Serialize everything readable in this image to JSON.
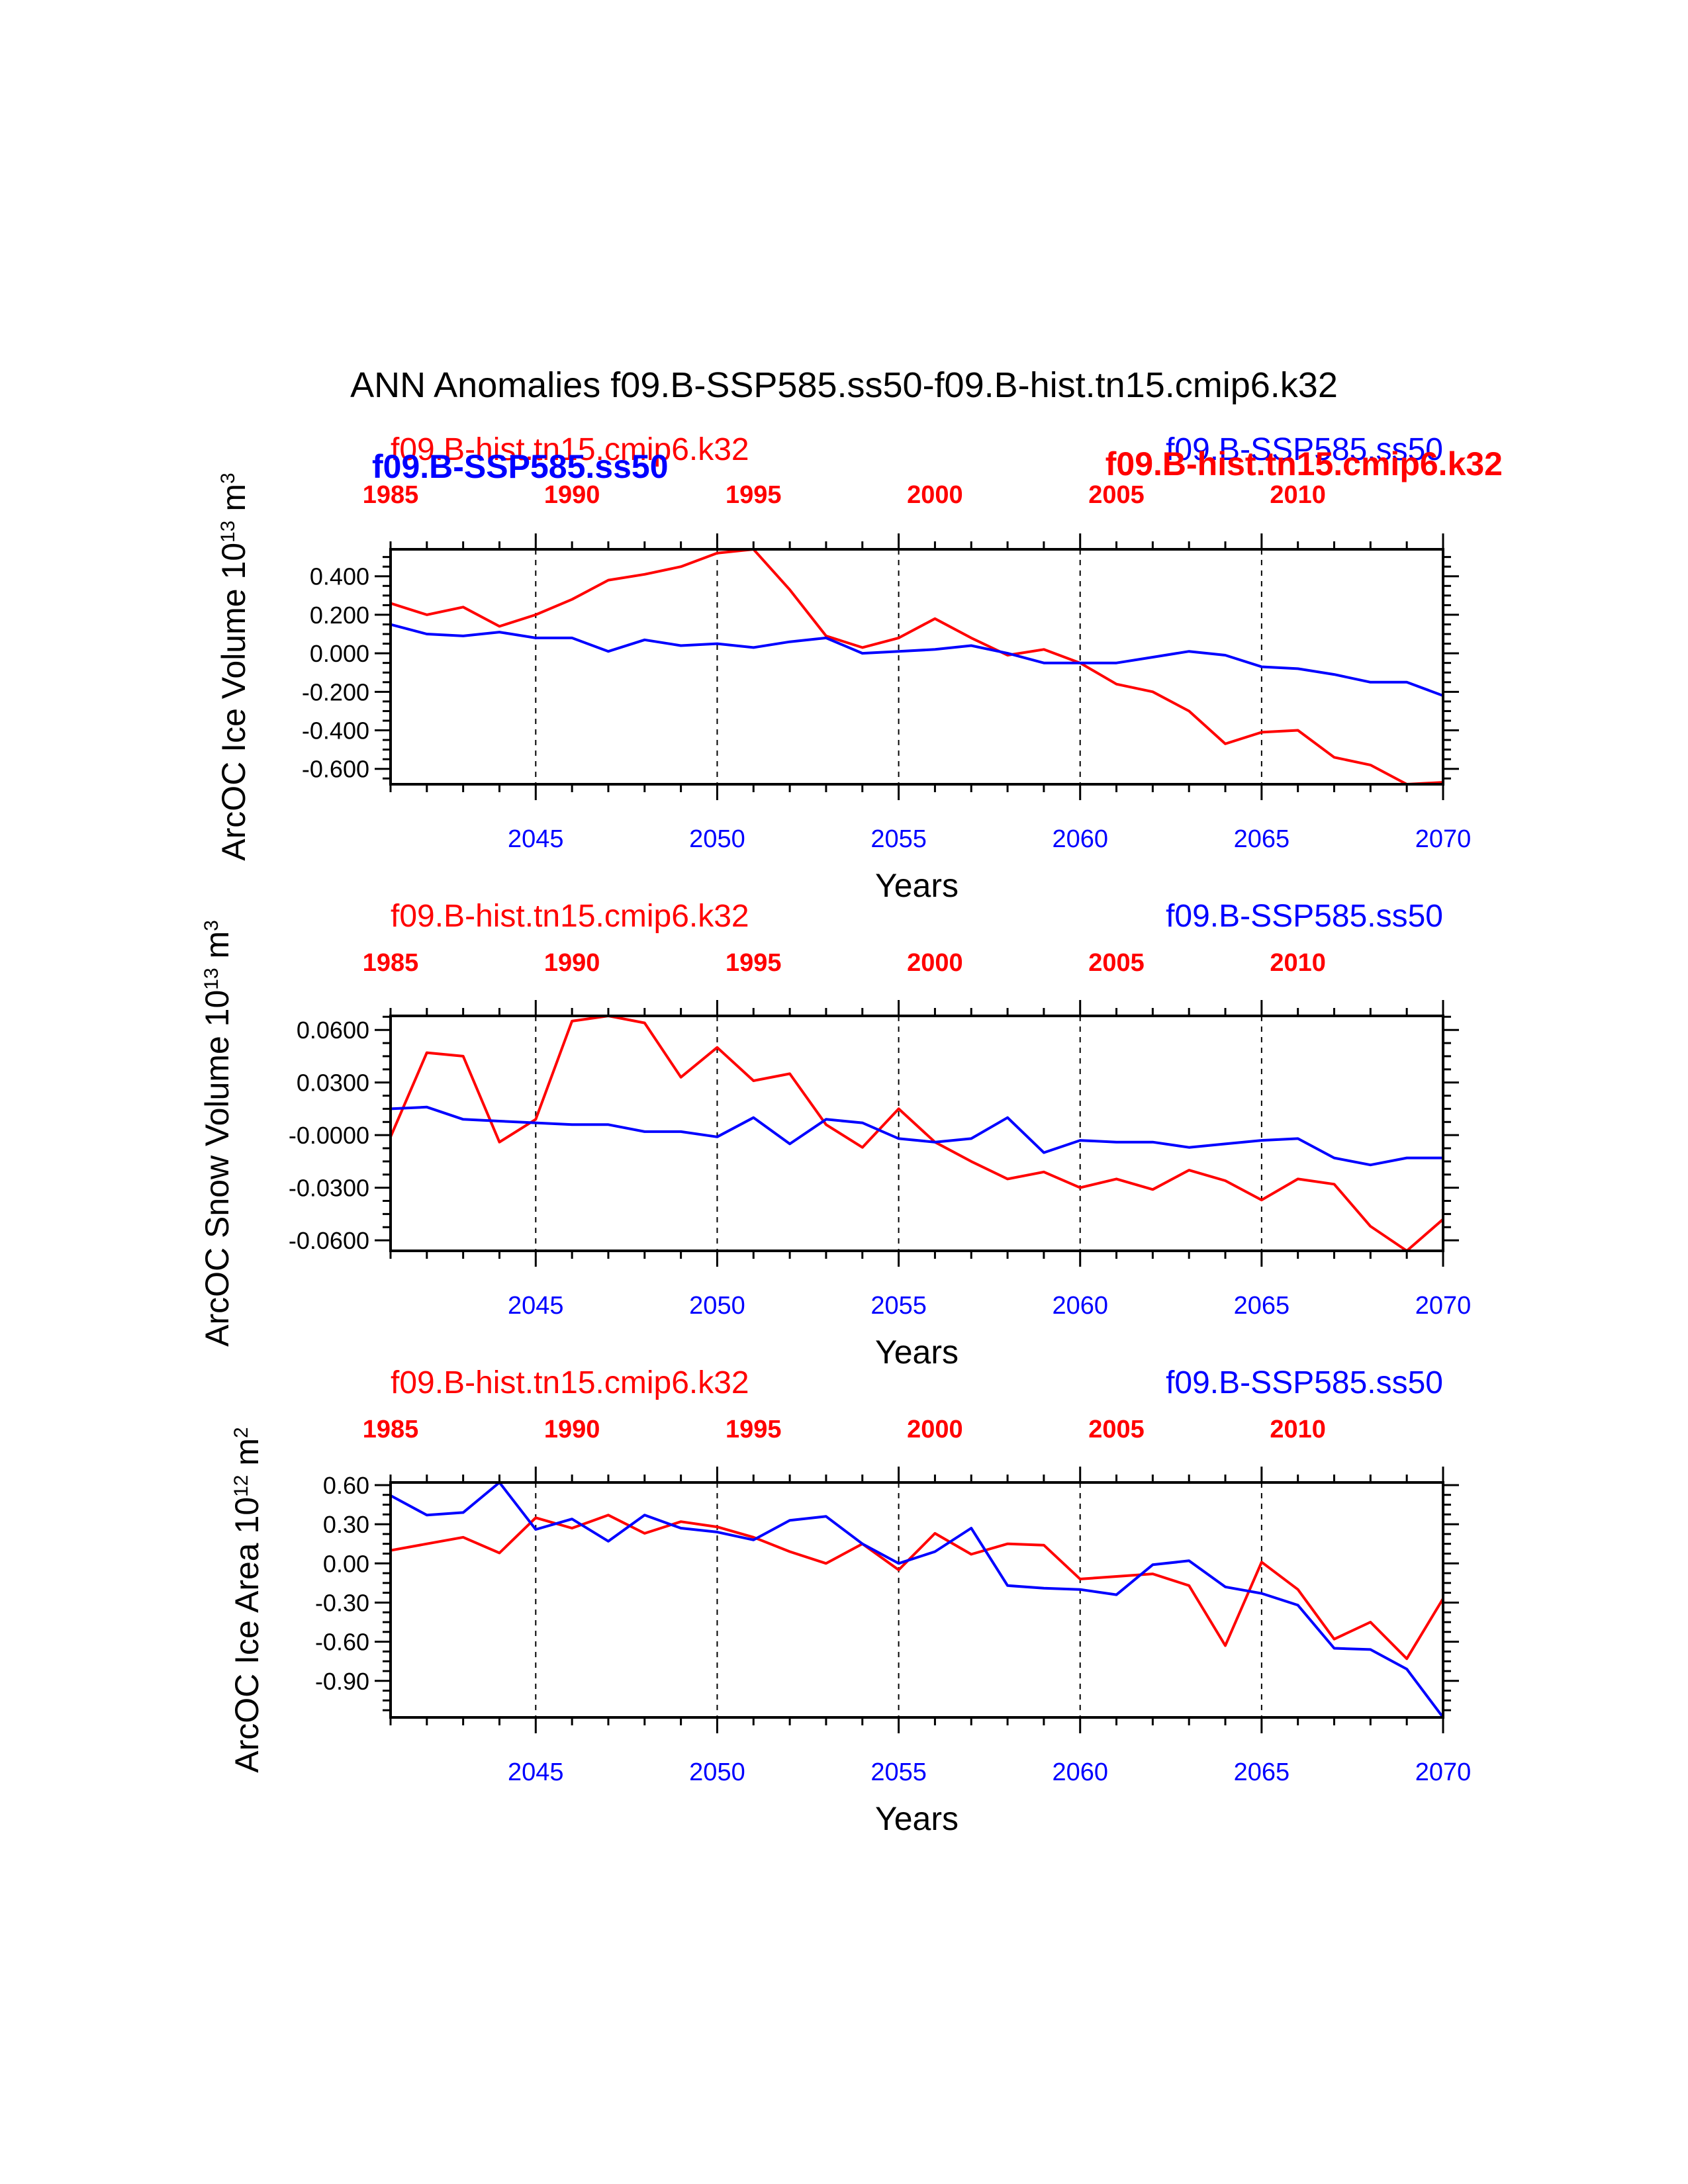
{
  "figure": {
    "title": "ANN Anomalies f09.B-SSP585.ss50-f09.B-hist.tn15.cmip6.k32",
    "colors": {
      "hist": "#ff0000",
      "ssp": "#0000ff",
      "frame": "#000000"
    }
  },
  "chart_data": [
    {
      "type": "line",
      "ylabel": "ArcOC Ice Volume 10",
      "ylabel_exp": "13",
      "ylabel_unit": " m",
      "ylabel_unit_exp": "3",
      "xlabel": "Years",
      "top_left_label": "f09.B-hist.tn15.cmip6.k32",
      "top_right_label": "f09.B-SSP585.ss50",
      "overlap_left_label": "f09.B-SSP585.ss50",
      "overlap_right_label": "f09.B-hist.tn15.cmip6.k32",
      "x_bottom_ticks": [
        "2045",
        "2050",
        "2055",
        "2060",
        "2065",
        "2070"
      ],
      "x_top_ticks": [
        "1985",
        "1990",
        "1995",
        "2000",
        "2005",
        "2010"
      ],
      "y_ticks": [
        "0.400",
        "0.200",
        "0.000",
        "-0.200",
        "-0.400",
        "-0.600"
      ],
      "y_tick_values": [
        0.4,
        0.2,
        0.0,
        -0.2,
        -0.4,
        -0.6
      ],
      "ylim": [
        -0.68,
        0.54
      ],
      "xlim_bottom": [
        2041,
        2070
      ],
      "top_axis_offset": 56,
      "grid": "dashed vertical lines at 2045, 2050, 2055, 2060, 2065",
      "series": [
        {
          "name": "f09.B-hist.tn15.cmip6.k32",
          "color": "#ff0000",
          "x": [
            2041,
            2042,
            2043,
            2044,
            2045,
            2046,
            2047,
            2048,
            2049,
            2050,
            2051,
            2052,
            2053,
            2054,
            2055,
            2056,
            2057,
            2058,
            2059,
            2060,
            2061,
            2062,
            2063,
            2064,
            2065,
            2066,
            2067,
            2068,
            2069,
            2070
          ],
          "values": [
            0.26,
            0.2,
            0.24,
            0.14,
            0.2,
            0.28,
            0.38,
            0.41,
            0.45,
            0.52,
            0.54,
            0.33,
            0.09,
            0.03,
            0.08,
            0.18,
            0.08,
            -0.01,
            0.02,
            -0.05,
            -0.16,
            -0.2,
            -0.3,
            -0.47,
            -0.41,
            -0.4,
            -0.54,
            -0.58,
            -0.68,
            -0.67
          ]
        },
        {
          "name": "f09.B-SSP585.ss50",
          "color": "#0000ff",
          "x": [
            2041,
            2042,
            2043,
            2044,
            2045,
            2046,
            2047,
            2048,
            2049,
            2050,
            2051,
            2052,
            2053,
            2054,
            2055,
            2056,
            2057,
            2058,
            2059,
            2060,
            2061,
            2062,
            2063,
            2064,
            2065,
            2066,
            2067,
            2068,
            2069,
            2070
          ],
          "values": [
            0.15,
            0.1,
            0.09,
            0.11,
            0.08,
            0.08,
            0.01,
            0.07,
            0.04,
            0.05,
            0.03,
            0.06,
            0.08,
            0.0,
            0.01,
            0.02,
            0.04,
            0.0,
            -0.05,
            -0.05,
            -0.05,
            -0.02,
            0.01,
            -0.01,
            -0.07,
            -0.08,
            -0.11,
            -0.15,
            -0.15,
            -0.22
          ]
        }
      ]
    },
    {
      "type": "line",
      "ylabel": "ArcOC Snow Volume 10",
      "ylabel_exp": "13",
      "ylabel_unit": " m",
      "ylabel_unit_exp": "3",
      "xlabel": "Years",
      "top_left_label": "f09.B-hist.tn15.cmip6.k32",
      "top_right_label": "f09.B-SSP585.ss50",
      "x_bottom_ticks": [
        "2045",
        "2050",
        "2055",
        "2060",
        "2065",
        "2070"
      ],
      "x_top_ticks": [
        "1985",
        "1990",
        "1995",
        "2000",
        "2005",
        "2010"
      ],
      "y_ticks": [
        "0.0600",
        "0.0300",
        "-0.0000",
        "-0.0300",
        "-0.0600"
      ],
      "y_tick_values": [
        0.06,
        0.03,
        0.0,
        -0.03,
        -0.06
      ],
      "ylim": [
        -0.066,
        0.068
      ],
      "xlim_bottom": [
        2041,
        2070
      ],
      "top_axis_offset": 56,
      "grid": "dashed vertical lines at 2045, 2050, 2055, 2060, 2065",
      "series": [
        {
          "name": "f09.B-hist.tn15.cmip6.k32",
          "color": "#ff0000",
          "x": [
            2041,
            2042,
            2043,
            2044,
            2045,
            2046,
            2047,
            2048,
            2049,
            2050,
            2051,
            2052,
            2053,
            2054,
            2055,
            2056,
            2057,
            2058,
            2059,
            2060,
            2061,
            2062,
            2063,
            2064,
            2065,
            2066,
            2067,
            2068,
            2069,
            2070
          ],
          "values": [
            -0.001,
            0.047,
            0.045,
            -0.004,
            0.009,
            0.065,
            0.068,
            0.064,
            0.033,
            0.05,
            0.031,
            0.035,
            0.006,
            -0.007,
            0.015,
            -0.004,
            -0.015,
            -0.025,
            -0.021,
            -0.03,
            -0.025,
            -0.031,
            -0.02,
            -0.026,
            -0.037,
            -0.025,
            -0.028,
            -0.052,
            -0.066,
            -0.048
          ]
        },
        {
          "name": "f09.B-SSP585.ss50",
          "color": "#0000ff",
          "x": [
            2041,
            2042,
            2043,
            2044,
            2045,
            2046,
            2047,
            2048,
            2049,
            2050,
            2051,
            2052,
            2053,
            2054,
            2055,
            2056,
            2057,
            2058,
            2059,
            2060,
            2061,
            2062,
            2063,
            2064,
            2065,
            2066,
            2067,
            2068,
            2069,
            2070
          ],
          "values": [
            0.015,
            0.016,
            0.009,
            0.008,
            0.007,
            0.006,
            0.006,
            0.002,
            0.002,
            -0.001,
            0.01,
            -0.005,
            0.009,
            0.007,
            -0.002,
            -0.004,
            -0.002,
            0.01,
            -0.01,
            -0.003,
            -0.004,
            -0.004,
            -0.007,
            -0.005,
            -0.003,
            -0.002,
            -0.013,
            -0.017,
            -0.013,
            -0.013
          ]
        }
      ]
    },
    {
      "type": "line",
      "ylabel": "ArcOC Ice Area 10",
      "ylabel_exp": "12",
      "ylabel_unit": " m",
      "ylabel_unit_exp": "2",
      "xlabel": "Years",
      "top_left_label": "f09.B-hist.tn15.cmip6.k32",
      "top_right_label": "f09.B-SSP585.ss50",
      "x_bottom_ticks": [
        "2045",
        "2050",
        "2055",
        "2060",
        "2065",
        "2070"
      ],
      "x_top_ticks": [
        "1985",
        "1990",
        "1995",
        "2000",
        "2005",
        "2010"
      ],
      "y_ticks": [
        "0.60",
        "0.30",
        "0.00",
        "-0.30",
        "-0.60",
        "-0.90"
      ],
      "y_tick_values": [
        0.6,
        0.3,
        0.0,
        -0.3,
        -0.6,
        -0.9
      ],
      "ylim": [
        -1.18,
        0.62
      ],
      "xlim_bottom": [
        2041,
        2070
      ],
      "top_axis_offset": 56,
      "grid": "dashed vertical lines at 2045, 2050, 2055, 2060, 2065",
      "series": [
        {
          "name": "f09.B-hist.tn15.cmip6.k32",
          "color": "#ff0000",
          "x": [
            2041,
            2042,
            2043,
            2044,
            2045,
            2046,
            2047,
            2048,
            2049,
            2050,
            2051,
            2052,
            2053,
            2054,
            2055,
            2056,
            2057,
            2058,
            2059,
            2060,
            2061,
            2062,
            2063,
            2064,
            2065,
            2066,
            2067,
            2068,
            2069,
            2070
          ],
          "values": [
            0.1,
            0.15,
            0.2,
            0.08,
            0.35,
            0.27,
            0.37,
            0.23,
            0.32,
            0.28,
            0.2,
            0.09,
            0.0,
            0.15,
            -0.05,
            0.23,
            0.07,
            0.15,
            0.14,
            -0.12,
            -0.1,
            -0.08,
            -0.17,
            -0.63,
            0.01,
            -0.2,
            -0.58,
            -0.45,
            -0.73,
            -0.27
          ]
        },
        {
          "name": "f09.B-SSP585.ss50",
          "color": "#0000ff",
          "x": [
            2041,
            2042,
            2043,
            2044,
            2045,
            2046,
            2047,
            2048,
            2049,
            2050,
            2051,
            2052,
            2053,
            2054,
            2055,
            2056,
            2057,
            2058,
            2059,
            2060,
            2061,
            2062,
            2063,
            2064,
            2065,
            2066,
            2067,
            2068,
            2069,
            2070
          ],
          "values": [
            0.52,
            0.37,
            0.39,
            0.62,
            0.26,
            0.34,
            0.17,
            0.37,
            0.27,
            0.24,
            0.18,
            0.33,
            0.36,
            0.15,
            0.0,
            0.09,
            0.27,
            -0.17,
            -0.19,
            -0.2,
            -0.24,
            -0.01,
            0.02,
            -0.18,
            -0.23,
            -0.32,
            -0.65,
            -0.66,
            -0.81,
            -1.18
          ]
        }
      ]
    }
  ]
}
